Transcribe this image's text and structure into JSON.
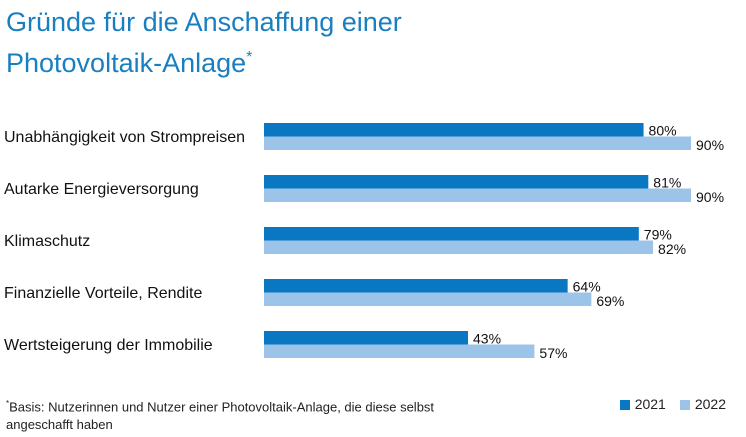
{
  "chart_data": {
    "type": "bar",
    "orientation": "horizontal",
    "title_line1": "Gründe für die Anschaffung einer",
    "title_line2": "Photovoltaik-Anlage",
    "title_mark": "*",
    "categories": [
      "Unabhängigkeit von Strompreisen",
      "Autarke Energieversorgung",
      "Klimaschutz",
      "Finanzielle Vorteile, Rendite",
      "Wertsteigerung der Immobilie"
    ],
    "series": [
      {
        "name": "2021",
        "color": "#0a77c2",
        "values": [
          80,
          81,
          79,
          64,
          43
        ]
      },
      {
        "name": "2022",
        "color": "#9cc4e8",
        "values": [
          90,
          90,
          82,
          69,
          57
        ]
      }
    ],
    "value_suffix": "%",
    "xlim": [
      0,
      90
    ],
    "grid": false,
    "legend_placement": "bottom-right",
    "footnote_mark": "*",
    "footnote": "Basis: Nutzerinnen und Nutzer einer Photovoltaik-Anlage, die diese selbst angeschafft haben"
  }
}
